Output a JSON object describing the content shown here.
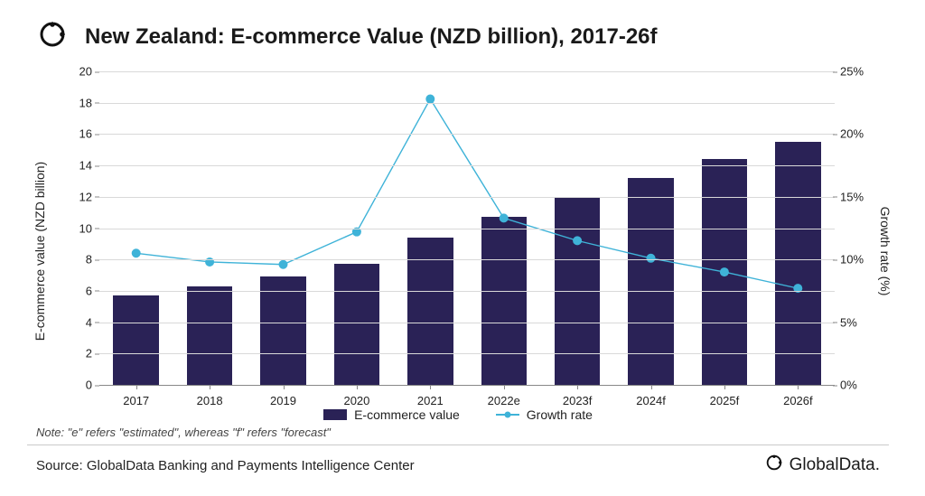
{
  "title": "New Zealand: E-commerce Value (NZD billion), 2017-26f",
  "chart": {
    "type": "bar+line",
    "categories": [
      "2017",
      "2018",
      "2019",
      "2020",
      "2021",
      "2022e",
      "2023f",
      "2024f",
      "2025f",
      "2026f"
    ],
    "bars": {
      "label": "E-commerce value",
      "values": [
        5.7,
        6.3,
        6.9,
        7.7,
        9.4,
        10.7,
        12.0,
        13.2,
        14.4,
        15.5
      ],
      "color": "#2a2256"
    },
    "line": {
      "label": "Growth rate",
      "values": [
        10.5,
        9.8,
        9.6,
        12.2,
        22.8,
        13.3,
        11.5,
        10.1,
        9.0,
        7.7
      ],
      "color": "#3fb3d8",
      "marker_color": "#3fb3d8",
      "marker_size": 5,
      "line_width": 1.4
    },
    "y_left": {
      "label": "E-commerce value (NZD billion)",
      "min": 0,
      "max": 20,
      "step": 2,
      "ticks": [
        0,
        2,
        4,
        6,
        8,
        10,
        12,
        14,
        16,
        18,
        20
      ]
    },
    "y_right": {
      "label": "Growth rate (%)",
      "min": 0,
      "max": 25,
      "step": 5,
      "ticks_fmt": [
        "0%",
        "5%",
        "10%",
        "15%",
        "20%",
        "25%"
      ],
      "ticks": [
        0,
        5,
        10,
        15,
        20,
        25
      ]
    },
    "grid_color": "#d9d9d9",
    "axis_color": "#888888",
    "background_color": "#ffffff",
    "bar_width_ratio": 0.62,
    "label_fontsize": 14,
    "tick_fontsize": 13,
    "title_fontsize": 24
  },
  "note": "Note: \"e\" refers \"estimated\", whereas \"f\" refers \"forecast\"",
  "source": "Source: GlobalData Banking and Payments Intelligence Center",
  "brand": "GlobalData."
}
